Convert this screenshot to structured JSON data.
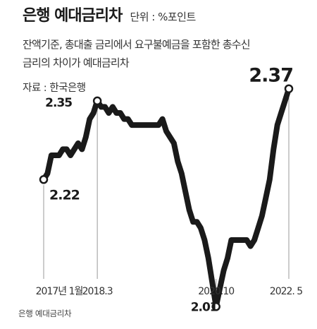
{
  "header": {
    "title": "은행 예대금리차",
    "unit": "단위 : %포인트",
    "subtitle_line1": "잔액기준, 총대출 금리에서 요구불예금을 포함한 총수신",
    "subtitle_line2": "금리의 차이가 예대금리차",
    "source": "자료 : 한국은행"
  },
  "footer": {
    "caption": "은행 예대금리차"
  },
  "colors": {
    "line": "#1a1a1a",
    "guide": "#999999",
    "background": "#ffffff"
  },
  "chart_data": {
    "type": "line",
    "title": "은행 예대금리차",
    "ylabel": "",
    "xlabel": "",
    "x_tick_labels": [
      "2017년 1월",
      "2018.3",
      "2020.10",
      "2022. 5"
    ],
    "ylim": [
      1.98,
      2.4
    ],
    "grid": false,
    "series": [
      {
        "x": [
          "2017-01",
          "2017-02",
          "2017-03",
          "2017-04",
          "2017-05",
          "2017-06",
          "2017-07",
          "2017-08",
          "2017-09",
          "2017-10",
          "2017-11",
          "2017-12",
          "2018-01",
          "2018-02",
          "2018-03",
          "2018-04",
          "2018-05",
          "2018-06",
          "2018-07",
          "2018-08",
          "2018-09",
          "2018-10",
          "2018-11",
          "2018-12",
          "2019-01",
          "2019-02",
          "2019-03",
          "2019-04",
          "2019-05",
          "2019-06",
          "2019-07",
          "2019-08",
          "2019-09",
          "2019-10",
          "2019-11",
          "2019-12",
          "2020-01",
          "2020-02",
          "2020-03",
          "2020-04",
          "2020-05",
          "2020-06",
          "2020-07",
          "2020-08",
          "2020-09",
          "2020-10",
          "2020-11",
          "2020-12",
          "2021-01",
          "2021-02",
          "2021-03",
          "2021-04",
          "2021-05",
          "2021-06",
          "2021-07",
          "2021-08",
          "2021-09",
          "2021-10",
          "2021-11",
          "2021-12",
          "2022-01",
          "2022-02",
          "2022-03",
          "2022-04",
          "2022-05"
        ],
        "values": [
          2.22,
          2.23,
          2.26,
          2.26,
          2.26,
          2.27,
          2.27,
          2.26,
          2.27,
          2.28,
          2.27,
          2.29,
          2.32,
          2.33,
          2.35,
          2.34,
          2.34,
          2.33,
          2.34,
          2.33,
          2.33,
          2.32,
          2.32,
          2.31,
          2.31,
          2.31,
          2.31,
          2.31,
          2.31,
          2.31,
          2.31,
          2.32,
          2.3,
          2.29,
          2.28,
          2.25,
          2.23,
          2.2,
          2.17,
          2.15,
          2.15,
          2.14,
          2.12,
          2.09,
          2.05,
          2.01,
          2.04,
          2.07,
          2.09,
          2.12,
          2.12,
          2.12,
          2.12,
          2.12,
          2.11,
          2.12,
          2.14,
          2.16,
          2.19,
          2.22,
          2.27,
          2.31,
          2.33,
          2.35,
          2.37
        ]
      }
    ],
    "annotations": [
      {
        "x": "2017-01",
        "value": 2.22,
        "text": "2.22"
      },
      {
        "x": "2018-03",
        "value": 2.35,
        "text": "2.35"
      },
      {
        "x": "2020-10",
        "value": 2.01,
        "text": "2.01"
      },
      {
        "x": "2022-05",
        "value": 2.37,
        "text": "2.37"
      }
    ]
  }
}
